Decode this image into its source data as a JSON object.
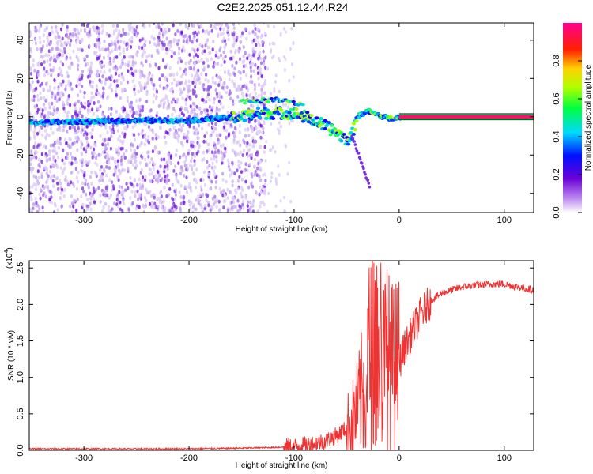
{
  "title": "C2E2.2025.051.12.44.R24",
  "chart_data": [
    {
      "type": "heatmap",
      "xlabel": "Height of straight line (km)",
      "ylabel": "Frequency (Hz)",
      "xlim": [
        -352,
        128
      ],
      "ylim": [
        -50,
        49
      ],
      "xticks": [
        -300,
        -200,
        -100,
        0,
        100
      ],
      "xtick_labels": [
        "-300",
        "-200",
        "-100",
        "0",
        "100"
      ],
      "yticks": [
        -40,
        -20,
        0,
        20,
        40
      ],
      "ytick_labels": [
        "-40",
        "-20",
        "0",
        "20",
        "40"
      ],
      "colorbar": {
        "label": "Normalized spectral amplitude",
        "range": [
          0,
          1
        ],
        "ticks": [
          0.0,
          0.2,
          0.4,
          0.6,
          0.8
        ],
        "tick_labels": [
          "0.0",
          "0.2",
          "0.4",
          "0.6",
          "0.8"
        ]
      },
      "features": [
        {
          "name": "signal track",
          "points": [
            [
              -350,
              -3
            ],
            [
              -250,
              -2
            ],
            [
              -200,
              -2
            ],
            [
              -150,
              0
            ],
            [
              -130,
              2
            ],
            [
              -100,
              2
            ],
            [
              -80,
              -2
            ],
            [
              -60,
              -8
            ],
            [
              -50,
              -12
            ],
            [
              -45,
              -10
            ],
            [
              -40,
              0
            ],
            [
              -30,
              3
            ],
            [
              -20,
              1
            ],
            [
              -10,
              -1
            ],
            [
              0,
              0
            ],
            [
              128,
              0
            ]
          ]
        },
        {
          "name": "upper branch",
          "points": [
            [
              -150,
              8
            ],
            [
              -110,
              9
            ],
            [
              -90,
              6
            ]
          ]
        },
        {
          "name": "descending tail",
          "points": [
            [
              -45,
              -10
            ],
            [
              -35,
              -25
            ],
            [
              -28,
              -37
            ]
          ]
        },
        {
          "name": "noise region",
          "x_range": [
            -352,
            -130
          ],
          "y_range": [
            -50,
            49
          ]
        }
      ]
    },
    {
      "type": "line",
      "xlabel": "Height of straight line (km)",
      "ylabel": "SNR (10 * v/v)",
      "y_scale_label": "(x10",
      "y_scale_exp": "4",
      "xlim": [
        -352,
        128
      ],
      "ylim": [
        0,
        2.6
      ],
      "xticks": [
        -300,
        -200,
        -100,
        0,
        100
      ],
      "xtick_labels": [
        "-300",
        "-200",
        "-100",
        "0",
        "100"
      ],
      "yticks": [
        0.0,
        0.5,
        1.0,
        1.5,
        2.0,
        2.5
      ],
      "ytick_labels": [
        "0.0",
        "0.5",
        "1.0",
        "1.5",
        "2.0",
        "2.5"
      ],
      "color": "#ee3333",
      "series": [
        {
          "name": "SNR",
          "x": [
            -352,
            -300,
            -250,
            -200,
            -150,
            -120,
            -100,
            -90,
            -80,
            -70,
            -60,
            -50,
            -45,
            -40,
            -35,
            -30,
            -25,
            -20,
            -15,
            -10,
            -5,
            0,
            5,
            10,
            15,
            20,
            25,
            30,
            40,
            50,
            60,
            70,
            80,
            90,
            100,
            110,
            120,
            128
          ],
          "y": [
            0.02,
            0.02,
            0.02,
            0.02,
            0.03,
            0.04,
            0.05,
            0.07,
            0.1,
            0.13,
            0.2,
            0.3,
            0.4,
            0.55,
            0.8,
            1.2,
            1.5,
            1.3,
            1.2,
            1.2,
            1.1,
            1.2,
            1.4,
            1.55,
            1.7,
            1.85,
            1.95,
            2.05,
            2.15,
            2.2,
            2.24,
            2.26,
            2.27,
            2.28,
            2.28,
            2.25,
            2.22,
            2.2
          ]
        }
      ]
    }
  ]
}
